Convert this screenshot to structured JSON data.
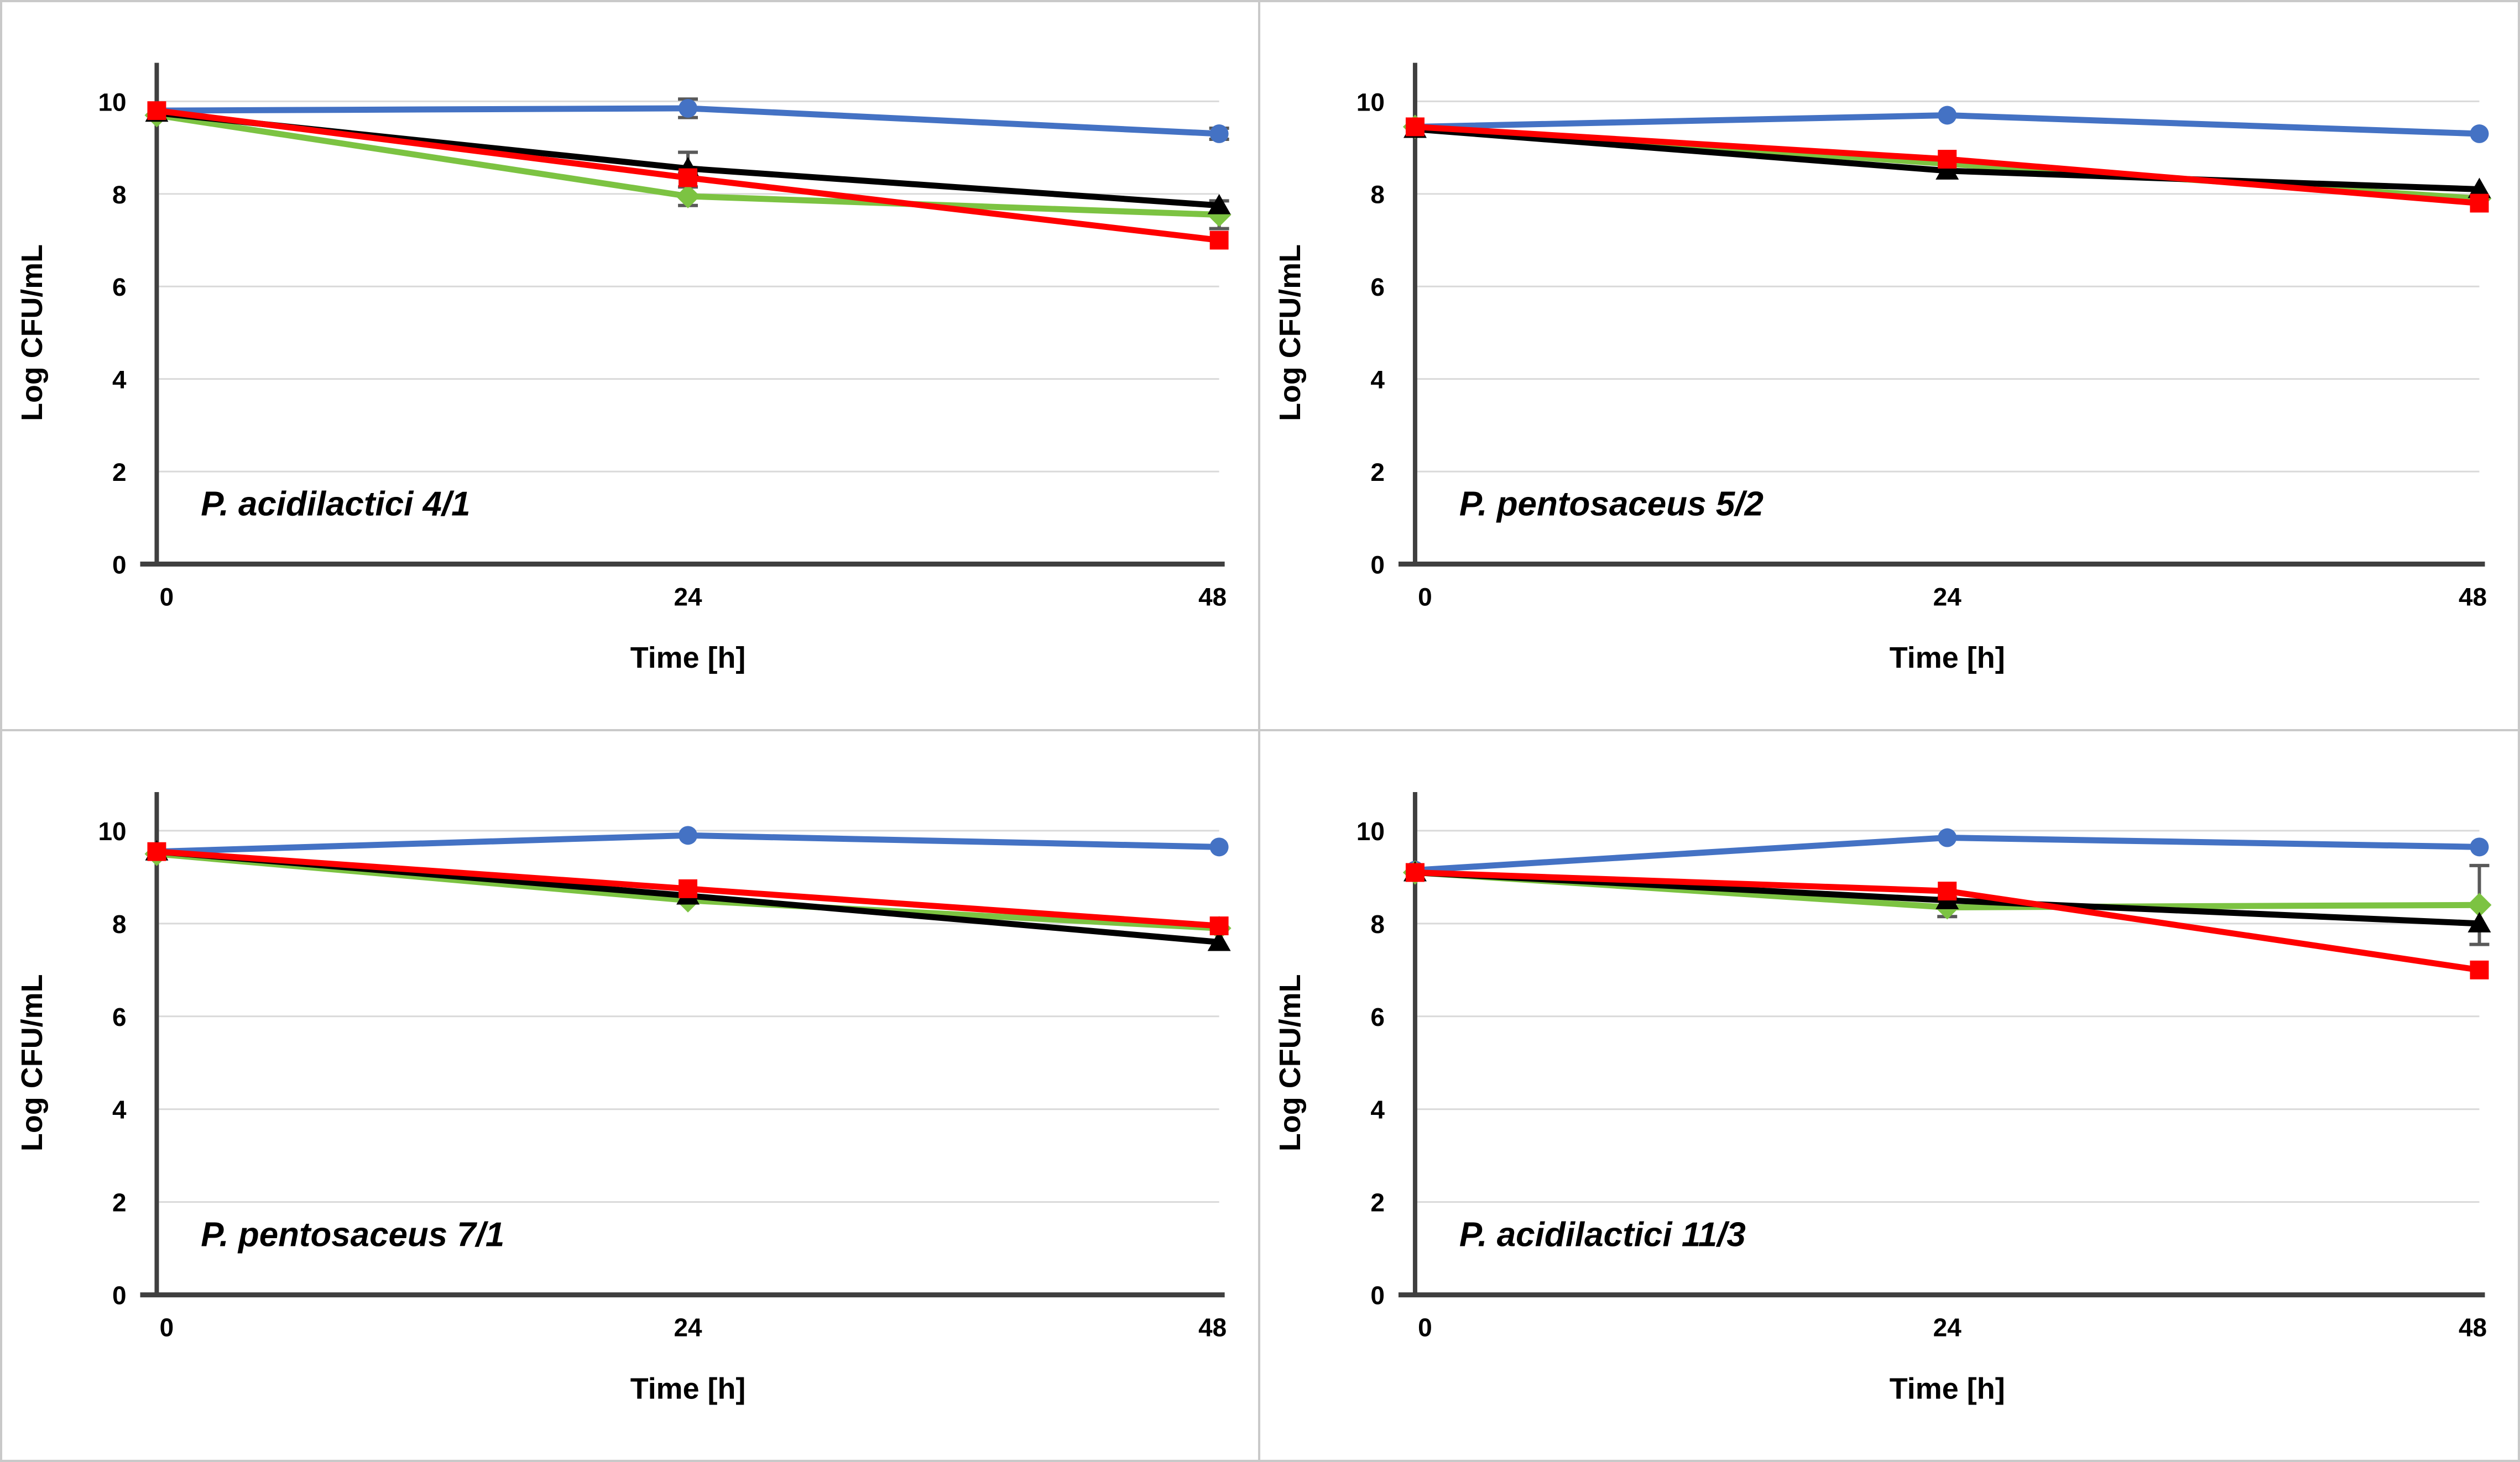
{
  "figure": {
    "kind": "four-panel line chart",
    "background": "#ffffff",
    "frame_color": "#c9c9c9"
  },
  "style": {
    "gridline_color": "#d9d9d9",
    "axis_color": "#3f3f3f",
    "error_bar_color": "#595959",
    "text_color": "#000000"
  },
  "chart_data": {
    "type": "line",
    "x": [
      0,
      24,
      48
    ],
    "xlabel": "Time [h]",
    "ylabel": "Log CFU/mL",
    "ylim": [
      0,
      10.7
    ],
    "yticks": [
      0,
      2,
      4,
      6,
      8,
      10
    ],
    "xticks": [
      "0",
      "24",
      "48"
    ],
    "grid": true,
    "legend": "none",
    "panels": [
      {
        "title": {
          "species": "P. acidilactici",
          "strain": "4/1"
        },
        "series": [
          {
            "key": "blue-circle",
            "marker": "circle",
            "color": "#4472C4",
            "values": [
              9.8,
              9.85,
              9.3
            ],
            "error_bars": [
              {
                "x": 24,
                "plus": 0.2,
                "minus": 0.2
              },
              {
                "x": 48,
                "plus": 0.12,
                "minus": 0.12
              }
            ]
          },
          {
            "key": "green-diamond",
            "marker": "diamond",
            "color": "#7CC342",
            "values": [
              9.7,
              7.95,
              7.55
            ],
            "error_bars": [
              {
                "x": 24,
                "plus": 0.2,
                "minus": 0.2
              },
              {
                "x": 48,
                "plus": 0.3,
                "minus": 0.3
              }
            ]
          },
          {
            "key": "black-triangle",
            "marker": "triangle",
            "color": "#000000",
            "values": [
              9.75,
              8.55,
              7.75
            ],
            "error_bars": [
              {
                "x": 24,
                "plus": 0.35,
                "minus": 0.1
              }
            ]
          },
          {
            "key": "red-square",
            "marker": "square",
            "color": "#FF0000",
            "values": [
              9.8,
              8.35,
              7.0
            ],
            "error_bars": []
          }
        ]
      },
      {
        "title": {
          "species": "P. pentosaceus",
          "strain": "5/2"
        },
        "series": [
          {
            "key": "blue-circle",
            "marker": "circle",
            "color": "#4472C4",
            "values": [
              9.45,
              9.7,
              9.3
            ],
            "error_bars": []
          },
          {
            "key": "green-diamond",
            "marker": "diamond",
            "color": "#7CC342",
            "values": [
              9.45,
              8.65,
              7.9
            ],
            "error_bars": []
          },
          {
            "key": "black-triangle",
            "marker": "triangle",
            "color": "#000000",
            "values": [
              9.4,
              8.5,
              8.1
            ],
            "error_bars": []
          },
          {
            "key": "red-square",
            "marker": "square",
            "color": "#FF0000",
            "values": [
              9.45,
              8.75,
              7.8
            ],
            "error_bars": []
          }
        ]
      },
      {
        "title": {
          "species": "P. pentosaceus",
          "strain": "7/1"
        },
        "series": [
          {
            "key": "blue-circle",
            "marker": "circle",
            "color": "#4472C4",
            "values": [
              9.55,
              9.9,
              9.65
            ],
            "error_bars": []
          },
          {
            "key": "green-diamond",
            "marker": "diamond",
            "color": "#7CC342",
            "values": [
              9.5,
              8.5,
              7.9
            ],
            "error_bars": []
          },
          {
            "key": "black-triangle",
            "marker": "triangle",
            "color": "#000000",
            "values": [
              9.55,
              8.6,
              7.6
            ],
            "error_bars": []
          },
          {
            "key": "red-square",
            "marker": "square",
            "color": "#FF0000",
            "values": [
              9.55,
              8.75,
              7.95
            ],
            "error_bars": []
          }
        ]
      },
      {
        "title": {
          "species": "P. acidilactici",
          "strain": "11/3"
        },
        "series": [
          {
            "key": "blue-circle",
            "marker": "circle",
            "color": "#4472C4",
            "values": [
              9.15,
              9.85,
              9.65
            ],
            "error_bars": []
          },
          {
            "key": "green-diamond",
            "marker": "diamond",
            "color": "#7CC342",
            "values": [
              9.1,
              8.35,
              8.4
            ],
            "error_bars": [
              {
                "x": 24,
                "plus": 0.2,
                "minus": 0.2
              },
              {
                "x": 48,
                "plus": 0.85,
                "minus": 0.85
              }
            ]
          },
          {
            "key": "black-triangle",
            "marker": "triangle",
            "color": "#000000",
            "values": [
              9.1,
              8.5,
              8.0
            ],
            "error_bars": []
          },
          {
            "key": "red-square",
            "marker": "square",
            "color": "#FF0000",
            "values": [
              9.1,
              8.7,
              7.0
            ],
            "error_bars": []
          }
        ]
      }
    ]
  }
}
